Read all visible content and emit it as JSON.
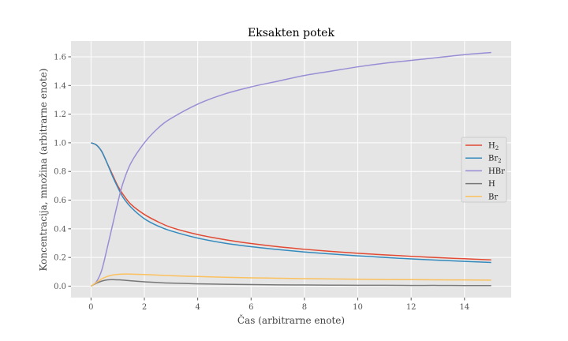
{
  "chart_data": {
    "type": "line",
    "title": "Eksakten potek",
    "xlabel": "Čas (arbitrarne enote)",
    "ylabel": "Koncentracija, množina (arbitrarne enote)",
    "xlim": [
      -0.75,
      15.75
    ],
    "ylim": [
      -0.08,
      1.71
    ],
    "x_ticks": [
      0,
      2,
      4,
      6,
      8,
      10,
      12,
      14
    ],
    "y_ticks": [
      0.0,
      0.2,
      0.4,
      0.6,
      0.8,
      1.0,
      1.2,
      1.4,
      1.6
    ],
    "x_tick_labels": [
      "0",
      "2",
      "4",
      "6",
      "8",
      "10",
      "12",
      "14"
    ],
    "y_tick_labels": [
      "0.0",
      "0.2",
      "0.4",
      "0.6",
      "0.8",
      "1.0",
      "1.2",
      "1.4",
      "1.6"
    ],
    "grid": true,
    "legend_position": "center-right",
    "background": "#e5e5e5",
    "x": [
      0,
      0.2,
      0.4,
      0.6,
      0.8,
      1.0,
      1.2,
      1.5,
      2.0,
      2.5,
      3.0,
      4.0,
      5.0,
      6.0,
      7.0,
      8.0,
      9.0,
      10.0,
      11.0,
      12.0,
      13.0,
      14.0,
      15.0
    ],
    "series": [
      {
        "name": "H",
        "sub": "2",
        "color": "#e24a33",
        "values": [
          1.0,
          0.985,
          0.94,
          0.86,
          0.78,
          0.7,
          0.64,
          0.57,
          0.5,
          0.45,
          0.41,
          0.36,
          0.325,
          0.297,
          0.275,
          0.257,
          0.242,
          0.229,
          0.218,
          0.208,
          0.199,
          0.191,
          0.183
        ]
      },
      {
        "name": "Br",
        "sub": "2",
        "color": "#348abd",
        "values": [
          1.0,
          0.985,
          0.94,
          0.86,
          0.77,
          0.69,
          0.62,
          0.55,
          0.47,
          0.42,
          0.385,
          0.335,
          0.3,
          0.275,
          0.255,
          0.238,
          0.224,
          0.211,
          0.2,
          0.19,
          0.181,
          0.173,
          0.165
        ]
      },
      {
        "name": "HBr",
        "sub": "",
        "color": "#988ed5",
        "values": [
          0.0,
          0.03,
          0.11,
          0.26,
          0.42,
          0.58,
          0.72,
          0.86,
          1.0,
          1.1,
          1.17,
          1.27,
          1.34,
          1.39,
          1.43,
          1.47,
          1.5,
          1.53,
          1.555,
          1.575,
          1.595,
          1.615,
          1.63
        ]
      },
      {
        "name": "H",
        "sub": "",
        "color": "#777777",
        "values": [
          0.0,
          0.02,
          0.035,
          0.043,
          0.045,
          0.044,
          0.042,
          0.037,
          0.03,
          0.025,
          0.021,
          0.016,
          0.013,
          0.011,
          0.009,
          0.008,
          0.007,
          0.006,
          0.006,
          0.005,
          0.005,
          0.004,
          0.004
        ]
      },
      {
        "name": "Br",
        "sub": "",
        "color": "#fbc15e",
        "values": [
          0.0,
          0.025,
          0.05,
          0.067,
          0.077,
          0.082,
          0.084,
          0.084,
          0.081,
          0.077,
          0.073,
          0.067,
          0.062,
          0.058,
          0.055,
          0.052,
          0.05,
          0.048,
          0.046,
          0.045,
          0.044,
          0.043,
          0.042
        ]
      }
    ]
  }
}
